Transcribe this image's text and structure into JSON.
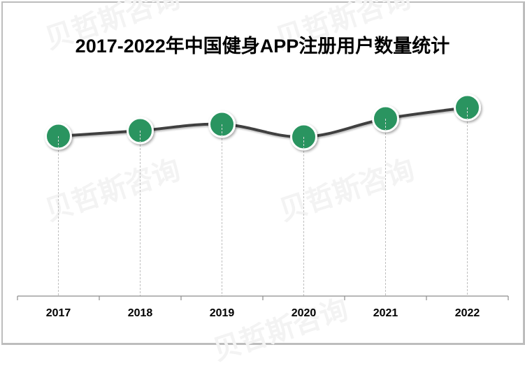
{
  "title": "2017-2022年中国健身APP注册用户数量统计",
  "watermark": "贝哲斯咨询",
  "colors": {
    "marker_fill": "#2a9460",
    "marker_border": "#ffffff",
    "line": "#404040",
    "axis": "#8c8c8c",
    "dropline": "#bfbfbf",
    "frame": "#bdbdbd"
  },
  "chart_data": {
    "type": "line",
    "title": "2017-2022年中国健身APP注册用户数量统计",
    "xlabel": "",
    "ylabel": "",
    "categories": [
      "2017",
      "2018",
      "2019",
      "2020",
      "2021",
      "2022"
    ],
    "series": [
      {
        "name": "注册用户数量",
        "values": [
          229,
          237,
          246,
          228,
          254,
          270
        ],
        "note": "relative values; no y-axis scale shown (estimated from pixel height above baseline)"
      }
    ],
    "grid": false,
    "legend": "none",
    "markers": true,
    "smooth": true,
    "drop_lines": true
  },
  "axis": {
    "labels": [
      "2017",
      "2018",
      "2019",
      "2020",
      "2021",
      "2022"
    ]
  }
}
